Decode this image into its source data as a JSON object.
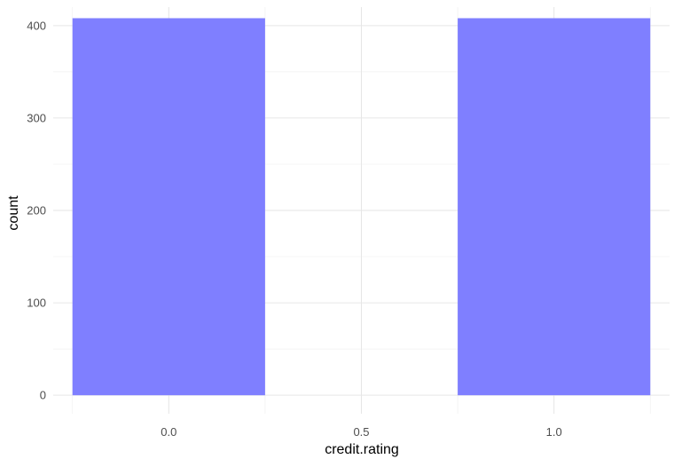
{
  "chart_data": {
    "type": "bar",
    "title": "",
    "xlabel": "credit.rating",
    "ylabel": "count",
    "xlim": [
      -0.3,
      1.3
    ],
    "ylim": [
      -20,
      420
    ],
    "xticks": [
      0.0,
      0.5,
      1.0
    ],
    "xtick_labels": [
      "0.0",
      "0.5",
      "1.0"
    ],
    "yticks": [
      0,
      100,
      200,
      300,
      400
    ],
    "ytick_labels": [
      "0",
      "100",
      "200",
      "300",
      "400"
    ],
    "bin_width": 0.5,
    "bars": [
      {
        "x": 0.0,
        "value": 408
      },
      {
        "x": 1.0,
        "value": 408
      }
    ],
    "bar_color": "#7f7fff",
    "grid": true,
    "legend": "none"
  }
}
